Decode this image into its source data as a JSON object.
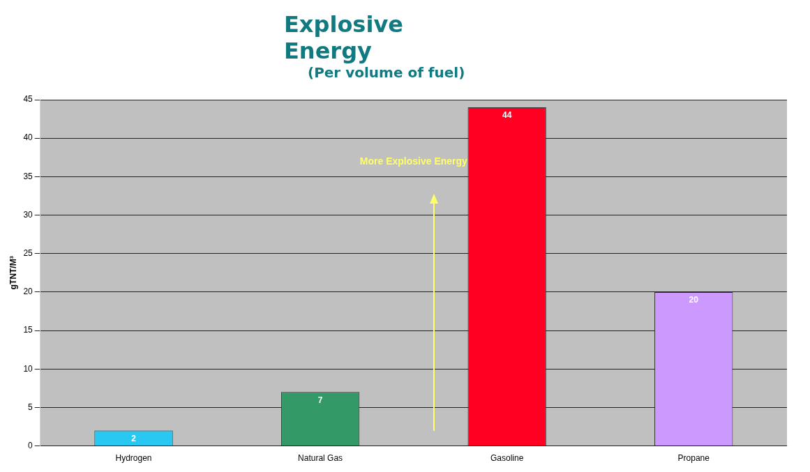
{
  "chart_data": {
    "type": "bar",
    "title": "Explosive Energy",
    "subtitle": "(Per volume of fuel)",
    "ylabel": "gTNT/M³",
    "categories": [
      "Hydrogen",
      "Natural Gas",
      "Gasoline",
      "Propane"
    ],
    "values": [
      2,
      7,
      44,
      20
    ],
    "colors": [
      "#29c8f2",
      "#339966",
      "#ff0022",
      "#cc99ff"
    ],
    "ylim": [
      0,
      45
    ],
    "yticks": [
      0,
      5,
      10,
      15,
      20,
      25,
      30,
      35,
      40,
      45
    ],
    "grid": "y",
    "data_labels": true,
    "annotations": [
      "More Explosive Energy"
    ]
  }
}
